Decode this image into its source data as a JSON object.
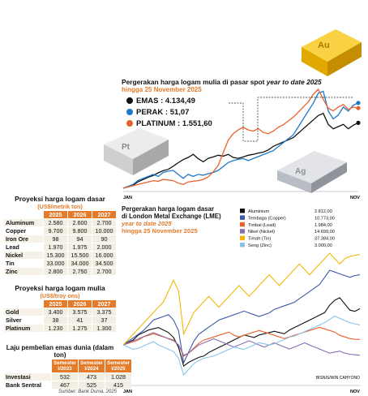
{
  "tables": {
    "base": {
      "title": "Proyeksi harga logam dasar",
      "unit": "(US$/metrik ton)",
      "headers": [
        "2025",
        "2026",
        "2027"
      ],
      "rows": [
        {
          "label": "Aluminum",
          "values": [
            "2.580",
            "2.600",
            "2.700"
          ]
        },
        {
          "label": "Copper",
          "values": [
            "9.700",
            "9.800",
            "10.000"
          ]
        },
        {
          "label": "Iron Ore",
          "values": [
            "98",
            "94",
            "90"
          ]
        },
        {
          "label": "Lead",
          "values": [
            "1.970",
            "1.975",
            "2.000"
          ]
        },
        {
          "label": "Nickel",
          "values": [
            "15.300",
            "15.500",
            "16.000"
          ]
        },
        {
          "label": "Tin",
          "values": [
            "33.000",
            "34.000",
            "34.500"
          ]
        },
        {
          "label": "Zinc",
          "values": [
            "2.800",
            "2.750",
            "2.700"
          ]
        }
      ]
    },
    "precious": {
      "title": "Proyeksi harga logam mulia",
      "unit": "(US$/troy ons)",
      "headers": [
        "2025",
        "2026",
        "2027"
      ],
      "rows": [
        {
          "label": "Gold",
          "values": [
            "3.400",
            "3.575",
            "3.375"
          ]
        },
        {
          "label": "Silver",
          "values": [
            "38",
            "41",
            "37"
          ]
        },
        {
          "label": "Platinum",
          "values": [
            "1.230",
            "1.275",
            "1.300"
          ]
        }
      ]
    },
    "purchases": {
      "title": "Laju pembelian emas dunia (dalam ton)",
      "headers": [
        "Semester I/2023",
        "Semester I/2024",
        "Semester I/2025"
      ],
      "rows": [
        {
          "label": "Investasi",
          "values": [
            "532",
            "473",
            "1.028"
          ]
        },
        {
          "label": "Bank Sentral",
          "values": [
            "467",
            "525",
            "415"
          ]
        }
      ]
    },
    "source": "Sumber: Bank Dunia, 2025"
  },
  "chart_data": [
    {
      "type": "line",
      "title": "Pergerakan harga logam mulia di pasar spot",
      "title_italic": "year to date 2025",
      "subtitle": "hingga 25 November 2025",
      "x_start_label": "JAN",
      "x_end_label": "NOV",
      "series": [
        {
          "name": "EMAS",
          "value_label": "4.134,49",
          "color": "#111111",
          "values": [
            2650,
            2690,
            2720,
            2800,
            2850,
            2900,
            2940,
            3000,
            3050,
            3080,
            3150,
            3230,
            3300,
            3350,
            3420,
            3320,
            3250,
            3330,
            3360,
            3400,
            3380,
            3420,
            3350,
            3330,
            3360,
            3400,
            3420,
            3450,
            3470,
            3520,
            3600,
            3650,
            3700,
            3750,
            3800,
            3900,
            4000,
            4100,
            4200,
            4300,
            4350,
            4100,
            4000,
            4050,
            4100,
            4000,
            4080,
            4134
          ]
        },
        {
          "name": "PERAK",
          "value_label": "51,07",
          "color": "#1f78c8",
          "values": [
            29.5,
            30.0,
            30.5,
            31.5,
            32.0,
            32.5,
            33.0,
            32.5,
            33.5,
            33.8,
            34.0,
            33.0,
            32.0,
            33.0,
            32.5,
            33.0,
            32.8,
            33.2,
            33.5,
            34.0,
            35.0,
            36.0,
            36.5,
            36.8,
            37.0,
            36.5,
            37.0,
            37.5,
            38.0,
            38.5,
            39.0,
            40.0,
            41.0,
            42.0,
            43.0,
            45.0,
            47.0,
            49.0,
            51.0,
            53.5,
            54.0,
            49.0,
            47.0,
            48.0,
            50.0,
            49.0,
            50.5,
            51.07
          ]
        },
        {
          "name": "PLATINUM",
          "value_label": "1.551,60",
          "color": "#e8612c",
          "values": [
            920,
            930,
            940,
            950,
            960,
            970,
            980,
            975,
            990,
            985,
            980,
            960,
            950,
            970,
            975,
            980,
            990,
            1010,
            1050,
            1100,
            1200,
            1300,
            1350,
            1380,
            1400,
            1380,
            1370,
            1390,
            1360,
            1350,
            1370,
            1400,
            1420,
            1450,
            1480,
            1520,
            1560,
            1600,
            1660,
            1700,
            1620,
            1550,
            1530,
            1560,
            1580,
            1540,
            1560,
            1551.6
          ]
        }
      ]
    },
    {
      "type": "line",
      "title": "Pergerakan harga logam dasar",
      "title2": "di London Metal Exchange (LME)",
      "subtitle1": "year to date 2025",
      "subtitle2": "hingga 25 November 2025",
      "x_start_label": "JAN",
      "x_end_label": "NOV",
      "credit": "BISNIS/WIN CAHYONO",
      "series": [
        {
          "name": "Aluminium",
          "value_label": "2.812,00",
          "color": "#111111",
          "values": [
            2520,
            2540,
            2560,
            2600,
            2620,
            2640,
            2650,
            2660,
            2640,
            2620,
            2580,
            2500,
            2350,
            2380,
            2400,
            2420,
            2430,
            2460,
            2480,
            2500,
            2520,
            2540,
            2560,
            2580,
            2600,
            2590,
            2580,
            2600,
            2610,
            2620,
            2630,
            2620,
            2610,
            2640,
            2660,
            2680,
            2700,
            2720,
            2740,
            2760,
            2780,
            2840,
            2880,
            2900,
            2850,
            2800,
            2790,
            2812
          ]
        },
        {
          "name": "Tembaga (Copper)",
          "value_label": "10.773,00",
          "color": "#3c5aa8",
          "values": [
            8800,
            8900,
            9000,
            9100,
            9200,
            9350,
            9500,
            9550,
            9600,
            9650,
            9500,
            9200,
            8300,
            8600,
            8900,
            9100,
            9200,
            9300,
            9400,
            9500,
            9550,
            9600,
            9650,
            9700,
            9750,
            9700,
            9650,
            9600,
            9650,
            9700,
            9800,
            9850,
            9900,
            9950,
            10000,
            10100,
            10200,
            10300,
            10400,
            10500,
            10700,
            10900,
            10850,
            10800,
            10750,
            10700,
            10750,
            10773
          ]
        },
        {
          "name": "Timbal (Lead)",
          "value_label": "1.984,00",
          "color": "#e8612c",
          "values": [
            1950,
            1960,
            1970,
            1980,
            2000,
            2010,
            2020,
            2010,
            2000,
            1990,
            1980,
            1950,
            1880,
            1900,
            1930,
            1960,
            1980,
            1990,
            2000,
            2010,
            2020,
            2030,
            2010,
            2000,
            2010,
            2020,
            2030,
            2040,
            2030,
            2020,
            2010,
            2000,
            1990,
            2000,
            2010,
            2020,
            2030,
            2040,
            2050,
            2060,
            2050,
            2040,
            2030,
            2010,
            2000,
            1990,
            1985,
            1984
          ]
        },
        {
          "name": "Nikel (Nickel)",
          "value_label": "14.699,00",
          "color": "#8a6fb0",
          "values": [
            15200,
            15300,
            15400,
            15500,
            15600,
            15700,
            15800,
            15700,
            15600,
            15500,
            15400,
            15200,
            14700,
            14800,
            15000,
            15200,
            15300,
            15400,
            15500,
            15400,
            15300,
            15200,
            15100,
            15200,
            15300,
            15400,
            15300,
            15200,
            15100,
            15200,
            15300,
            15200,
            15100,
            15000,
            15100,
            15200,
            15300,
            15200,
            15100,
            15000,
            14900,
            14800,
            14850,
            14900,
            14800,
            14750,
            14720,
            14699
          ]
        },
        {
          "name": "Timah (Tin)",
          "value_label": "37.384,00",
          "color": "#f2b705",
          "values": [
            29000,
            29500,
            30000,
            30500,
            31000,
            31500,
            32000,
            32500,
            33000,
            34000,
            35000,
            34000,
            30000,
            31000,
            32000,
            32500,
            33000,
            33500,
            33000,
            32500,
            33000,
            33500,
            34000,
            34500,
            34000,
            33500,
            34000,
            34500,
            35000,
            35500,
            35000,
            34500,
            35000,
            35500,
            36000,
            36500,
            36000,
            35500,
            36000,
            36500,
            37000,
            37500,
            37000,
            36500,
            37000,
            37200,
            37300,
            37384
          ]
        },
        {
          "name": "Seng (Zinc)",
          "value_label": "3.000,00",
          "color": "#88c4e8",
          "values": [
            2820,
            2800,
            2780,
            2790,
            2810,
            2830,
            2850,
            2820,
            2800,
            2780,
            2760,
            2700,
            2550,
            2600,
            2650,
            2680,
            2700,
            2710,
            2720,
            2740,
            2760,
            2780,
            2800,
            2790,
            2780,
            2800,
            2820,
            2840,
            2830,
            2820,
            2830,
            2850,
            2870,
            2890,
            2900,
            2920,
            2940,
            2960,
            2980,
            3000,
            3020,
            3050,
            3080,
            3060,
            3040,
            3020,
            3010,
            3000
          ]
        }
      ]
    }
  ],
  "decor": {
    "bar_labels": [
      "Au",
      "Pt",
      "Ag"
    ],
    "colors": {
      "accent": "#e47b2a",
      "gold": "#f2b705"
    }
  }
}
